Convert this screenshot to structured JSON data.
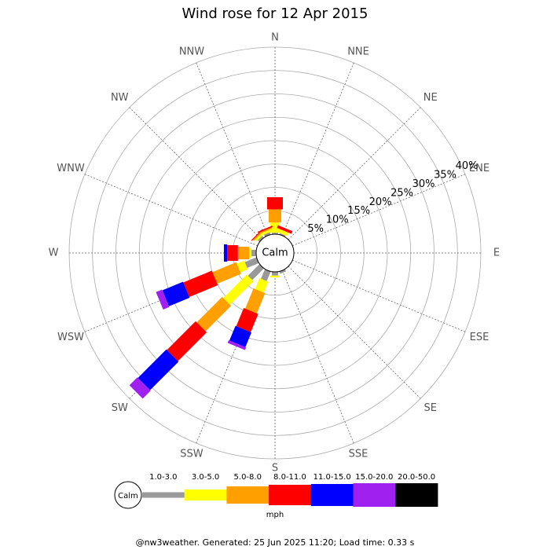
{
  "chart_data": {
    "type": "windrose",
    "title": "Wind rose for 12 Apr 2015",
    "categories": [
      "N",
      "NNE",
      "NE",
      "ENE",
      "E",
      "ESE",
      "SE",
      "SSE",
      "S",
      "SSW",
      "SW",
      "WSW",
      "W",
      "WNW",
      "NW",
      "NNW"
    ],
    "series": [
      {
        "name": "1.0-3.0",
        "color": "#999999",
        "values": [
          0.3,
          0.3,
          0,
          0,
          0,
          0,
          0,
          0.5,
          0.8,
          2.2,
          3.5,
          2.7,
          1,
          0,
          0.5,
          0.5
        ]
      },
      {
        "name": "3.0-5.0",
        "color": "#ffff00",
        "values": [
          2.2,
          0.8,
          0,
          0,
          0,
          0,
          0,
          0,
          0.4,
          2.5,
          7.1,
          1.7,
          0.5,
          0,
          0.5,
          0.5
        ]
      },
      {
        "name": "5.0-8.0",
        "color": "#ff9f00",
        "values": [
          2.8,
          0,
          0,
          0,
          0,
          0,
          0,
          0,
          0,
          4.7,
          7.7,
          5.5,
          2.4,
          0,
          0.3,
          0.3
        ]
      },
      {
        "name": "8.0-11.0",
        "color": "#ff0000",
        "values": [
          2.6,
          0.6,
          0,
          0,
          0,
          0,
          0,
          0,
          0,
          4.2,
          8.7,
          6.6,
          2.3,
          0,
          0.2,
          0.3
        ]
      },
      {
        "name": "11.0-15.0",
        "color": "#0000ff",
        "values": [
          0,
          0,
          0,
          0,
          0,
          0,
          0,
          0,
          0,
          3.4,
          8.6,
          4.8,
          0.7,
          0,
          0,
          0
        ]
      },
      {
        "name": "15.0-20.0",
        "color": "#a020f0",
        "values": [
          0,
          0,
          0,
          0,
          0,
          0,
          0,
          0,
          0,
          0.6,
          2.4,
          1.4,
          0,
          0,
          0,
          0
        ]
      },
      {
        "name": "20.0-50.0",
        "color": "#000000",
        "values": [
          0,
          0,
          0,
          0,
          0,
          0,
          0,
          0,
          0,
          0,
          0,
          0,
          0,
          0,
          0,
          0
        ]
      }
    ],
    "rlim": [
      0,
      40
    ],
    "rticks": [
      {
        "value": 5,
        "label": "5%"
      },
      {
        "value": 10,
        "label": "10%"
      },
      {
        "value": 15,
        "label": "15%"
      },
      {
        "value": 20,
        "label": "20%"
      },
      {
        "value": 25,
        "label": "25%"
      },
      {
        "value": 30,
        "label": "30%"
      },
      {
        "value": 35,
        "label": "35%"
      },
      {
        "value": 40,
        "label": "40%"
      }
    ],
    "calm_label": "Calm",
    "unit": "mph",
    "footer": "@nw3weather. Generated: 25 Jun 2025 11:20; Load time: 0.33 s"
  }
}
